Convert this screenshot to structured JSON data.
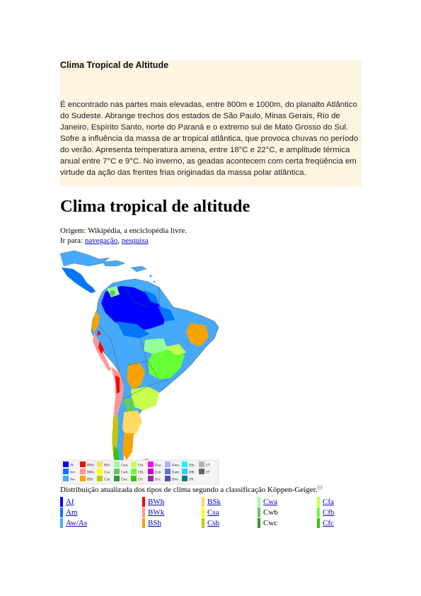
{
  "box": {
    "title": "Clima Tropical de Altitude",
    "body": "É encontrado nas partes mais elevadas, entre 800m e 1000m, do planalto Atlântico do Sudeste. Abrange trechos dos estados de São Paulo, Minas Gerais, Rio de Janeiro, Espírito Santo, norte do Paraná e o extremo sul de Mato Grosso do Sul. Sofre a influência da massa de ar tropical atlântica, que provoca chuvas no período do verão. Apresenta temperatura amena, entre 18°C e 22°C, e amplitude térmica anual entre 7°C e 9°C. No inverno, as geadas acontecem com certa freqüência em virtude da ação das frentes frias originadas da massa polar atlântica."
  },
  "article": {
    "title": "Clima tropical de altitude",
    "origin": "Origem: Wikipédia, a enciclopédia livre.",
    "goto_prefix": "Ir para: ",
    "nav_link": "navegação",
    "separator": ", ",
    "search_link": "pesquisa"
  },
  "map": {
    "legend": [
      {
        "code": "Af",
        "color": "#0000fe"
      },
      {
        "code": "Am",
        "color": "#0077ff"
      },
      {
        "code": "Aw",
        "color": "#46a9fa"
      },
      {
        "code": "BWh",
        "color": "#fe0000"
      },
      {
        "code": "BWk",
        "color": "#fe9695"
      },
      {
        "code": "BSh",
        "color": "#f5a301"
      },
      {
        "code": "BSk",
        "color": "#ffdb63"
      },
      {
        "code": "Csa",
        "color": "#ffff00"
      },
      {
        "code": "Csb",
        "color": "#c6c700"
      },
      {
        "code": "Cwa",
        "color": "#96ff96"
      },
      {
        "code": "Cwb",
        "color": "#63c764"
      },
      {
        "code": "Cwc",
        "color": "#329633"
      },
      {
        "code": "Cfa",
        "color": "#c6ff4e"
      },
      {
        "code": "Cfb",
        "color": "#66ff33"
      },
      {
        "code": "Cfc",
        "color": "#33c701"
      },
      {
        "code": "Dsa",
        "color": "#ff00fe"
      },
      {
        "code": "Dsb",
        "color": "#c600c7"
      },
      {
        "code": "Dsc",
        "color": "#963295"
      },
      {
        "code": "Dwa",
        "color": "#abb1ff"
      },
      {
        "code": "Dwb",
        "color": "#5a77db"
      },
      {
        "code": "Dwc",
        "color": "#4c51b5"
      },
      {
        "code": "Dfa",
        "color": "#00ffff"
      },
      {
        "code": "Dfb",
        "color": "#38c7ff"
      },
      {
        "code": "Dfc",
        "color": "#007e7d"
      },
      {
        "code": "ET",
        "color": "#b2b2b2"
      },
      {
        "code": "EF",
        "color": "#686868"
      }
    ]
  },
  "caption": {
    "text": "Distribuição atualizada dos tipos de clima segundo a classificação Köppen-Geiger.",
    "ref": "[1]"
  },
  "table": {
    "rows": [
      [
        {
          "label": "Af",
          "color": "#0000fe",
          "link": true
        },
        {
          "label": "BWh",
          "color": "#fe0000",
          "link": true
        },
        {
          "label": "BSk",
          "color": "#ffdb63",
          "link": true
        },
        {
          "label": "Cwa",
          "color": "#96ff96",
          "link": true
        },
        {
          "label": "Cfa",
          "color": "#c6ff4e",
          "link": true
        }
      ],
      [
        {
          "label": "Am",
          "color": "#0077ff",
          "link": true
        },
        {
          "label": "BWk",
          "color": "#fe9695",
          "link": true
        },
        {
          "label": "Csa",
          "color": "#ffff00",
          "link": true
        },
        {
          "label": "Cwb",
          "color": "#63c764",
          "link": false
        },
        {
          "label": "Cfb",
          "color": "#66ff33",
          "link": true
        }
      ],
      [
        {
          "label": "Aw/As",
          "color": "#46a9fa",
          "link": true
        },
        {
          "label": "BSh",
          "color": "#f5a301",
          "link": true
        },
        {
          "label": "Csb",
          "color": "#c6c700",
          "link": true
        },
        {
          "label": "Cwc",
          "color": "#329633",
          "link": false
        },
        {
          "label": "Cfc",
          "color": "#33c701",
          "link": true
        }
      ]
    ]
  }
}
